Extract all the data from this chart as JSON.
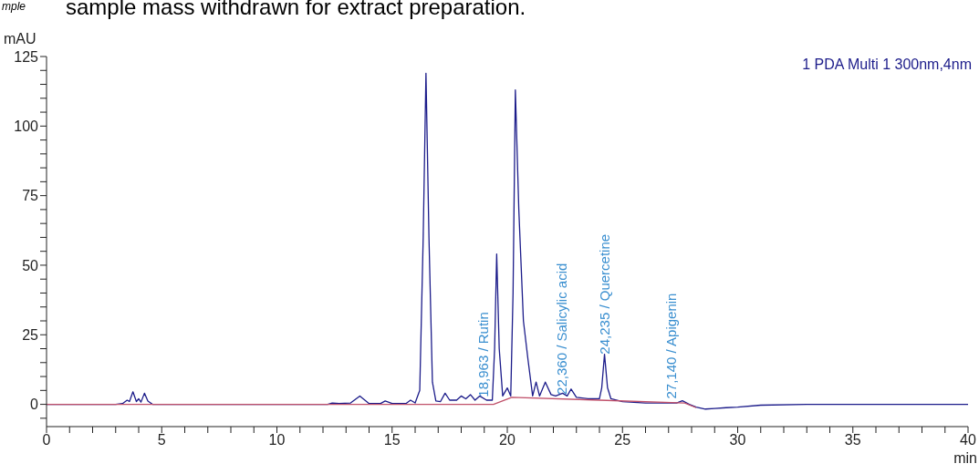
{
  "chart_data": {
    "type": "line",
    "xlabel": "min",
    "ylabel": "mAU",
    "xlim": [
      0,
      40
    ],
    "ylim": [
      -8,
      125
    ],
    "xticks": [
      0,
      {
        "value": 1,
        "label": null
      },
      {
        "value": 2,
        "label": null
      },
      {
        "value": 3,
        "label": null
      },
      {
        "value": 4,
        "label": null
      },
      5,
      {
        "value": 6,
        "label": null
      },
      {
        "value": 7,
        "label": null
      },
      {
        "value": 8,
        "label": null
      },
      {
        "value": 9,
        "label": null
      },
      10,
      {
        "value": 11,
        "label": null
      },
      {
        "value": 12,
        "label": null
      },
      {
        "value": 13,
        "label": null
      },
      {
        "value": 14,
        "label": null
      },
      15,
      {
        "value": 16,
        "label": null
      },
      {
        "value": 17,
        "label": null
      },
      {
        "value": 18,
        "label": null
      },
      {
        "value": 19,
        "label": null
      },
      20,
      {
        "value": 21,
        "label": null
      },
      {
        "value": 22,
        "label": null
      },
      {
        "value": 23,
        "label": null
      },
      {
        "value": 24,
        "label": null
      },
      25,
      {
        "value": 26,
        "label": null
      },
      {
        "value": 27,
        "label": null
      },
      {
        "value": 28,
        "label": null
      },
      {
        "value": 29,
        "label": null
      },
      30,
      {
        "value": 31,
        "label": null
      },
      {
        "value": 32,
        "label": null
      },
      {
        "value": 33,
        "label": null
      },
      {
        "value": 34,
        "label": null
      },
      35,
      {
        "value": 36,
        "label": null
      },
      {
        "value": 37,
        "label": null
      },
      {
        "value": 38,
        "label": null
      },
      {
        "value": 39,
        "label": null
      },
      40
    ],
    "yticks": [
      {
        "value": -5,
        "label": null
      },
      0,
      {
        "value": 5,
        "label": null
      },
      {
        "value": 10,
        "label": null
      },
      {
        "value": 15,
        "label": null
      },
      {
        "value": 20,
        "label": null
      },
      25,
      {
        "value": 30,
        "label": null
      },
      {
        "value": 35,
        "label": null
      },
      {
        "value": 40,
        "label": null
      },
      {
        "value": 45,
        "label": null
      },
      50,
      {
        "value": 55,
        "label": null
      },
      {
        "value": 60,
        "label": null
      },
      {
        "value": 65,
        "label": null
      },
      {
        "value": 70,
        "label": null
      },
      75,
      {
        "value": 80,
        "label": null
      },
      {
        "value": 85,
        "label": null
      },
      {
        "value": 90,
        "label": null
      },
      {
        "value": 95,
        "label": null
      },
      100,
      {
        "value": 105,
        "label": null
      },
      {
        "value": 110,
        "label": null
      },
      {
        "value": 115,
        "label": null
      },
      {
        "value": 120,
        "label": null
      },
      125
    ],
    "grid": false,
    "marker": "none",
    "line_style": "solid",
    "series": [
      {
        "color": "#1c1c8a",
        "x": [
          0,
          3.0,
          3.3,
          3.5,
          3.6,
          3.75,
          3.9,
          4.0,
          4.1,
          4.25,
          4.4,
          4.6,
          12.2,
          12.4,
          12.7,
          13.2,
          13.6,
          14.0,
          14.5,
          14.7,
          15.0,
          15.6,
          15.8,
          16.0,
          16.2,
          16.35,
          16.47,
          16.6,
          16.75,
          16.9,
          17.1,
          17.3,
          17.5,
          17.8,
          18.0,
          18.2,
          18.4,
          18.6,
          18.8,
          19.1,
          19.35,
          19.45,
          19.54,
          19.65,
          19.8,
          20.0,
          20.15,
          20.25,
          20.35,
          20.5,
          20.7,
          20.9,
          21.1,
          21.25,
          21.4,
          21.65,
          21.9,
          22.1,
          22.4,
          22.6,
          22.77,
          23.0,
          23.5,
          24.0,
          24.1,
          24.22,
          24.35,
          24.5,
          25.0,
          26.0,
          27.0,
          27.35,
          27.6,
          27.9,
          28.2,
          28.6,
          29.0,
          29.5,
          30.0,
          31.0,
          33.0,
          40
        ],
        "values": [
          0,
          0,
          0.3,
          1.5,
          1,
          4.5,
          1,
          2,
          0.8,
          4,
          1.2,
          0,
          0,
          0.5,
          0.3,
          0.5,
          3,
          0.3,
          0.3,
          1.2,
          0.3,
          0.3,
          1.5,
          0.5,
          5,
          60,
          119,
          60,
          8,
          1.2,
          1,
          4,
          1.5,
          1.5,
          3,
          2,
          3.5,
          1.5,
          3,
          1.5,
          1.5,
          20,
          54,
          20,
          3,
          5.9,
          3,
          40,
          113,
          70,
          30,
          16,
          3,
          8,
          3,
          8,
          3.5,
          3,
          4,
          3,
          5.5,
          2.5,
          2,
          2,
          6,
          18,
          6,
          2,
          1,
          0.5,
          0.5,
          0.5,
          1.3,
          0,
          -1,
          -1.7,
          -1.5,
          -1.2,
          -1,
          -0.3,
          0,
          0
        ]
      },
      {
        "color": "#c0506a",
        "x": [
          0,
          19.4,
          20.2,
          24.0,
          27.7,
          28.2
        ],
        "values": [
          0,
          0,
          2.5,
          1.5,
          0.5,
          -1.2
        ]
      }
    ],
    "annotations": [
      {
        "text": "18,963 / Rutin",
        "x": 18.963,
        "y": 2.6
      },
      {
        "text": "22,360 / Salicylic acid",
        "x": 22.36,
        "y": 3.5
      },
      {
        "text": "24,235 / Quercetine",
        "x": 24.235,
        "y": 18
      },
      {
        "text": "27,140 / Apigenin",
        "x": 27.14,
        "y": 2
      },
      "1 PDA Multi 1 300nm,4nm",
      "sample mass withdrawn for extract preparation.",
      "mple"
    ]
  }
}
